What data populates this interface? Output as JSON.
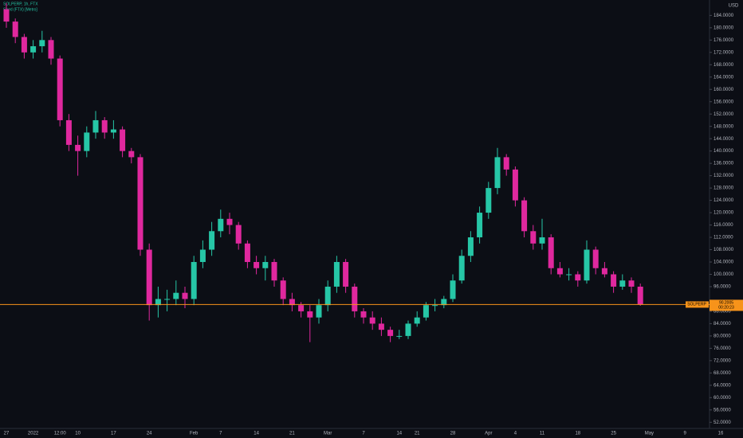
{
  "chart_data": {
    "type": "candlestick",
    "title": "SOLPERP, 1h, FTX",
    "subtitle": "Seed (FTX) [Metro]",
    "currency": "USD",
    "symbol": "SOLPERP",
    "last_price": 90.2005,
    "countdown": "00:20:23",
    "up_color": "#26c6a6",
    "down_color": "#e0289e",
    "price_line_color": "#f7931a",
    "categories": [
      "27",
      null,
      null,
      "2022",
      null,
      null,
      "12:00",
      null,
      "10",
      null,
      null,
      null,
      "17",
      null,
      null,
      null,
      "24",
      null,
      null,
      null,
      null,
      "Feb",
      null,
      null,
      "7",
      null,
      null,
      null,
      "14",
      null,
      null,
      null,
      "21",
      null,
      null,
      null,
      "Mar",
      null,
      null,
      null,
      "7",
      null,
      null,
      null,
      "14",
      null,
      "21",
      null,
      null,
      null,
      "28",
      null,
      null,
      null,
      "Apr",
      null,
      null,
      "4",
      null,
      null,
      "11",
      null,
      null,
      null,
      "18",
      null,
      null,
      null,
      "25",
      null,
      null,
      null,
      "May",
      null,
      null,
      null,
      "9",
      null,
      null,
      null,
      "16"
    ],
    "open": [
      186,
      182,
      177,
      172,
      174,
      176,
      170,
      150,
      142,
      140,
      146,
      150,
      146,
      147,
      140,
      138,
      108,
      90,
      92,
      92,
      94,
      92,
      104,
      108,
      114,
      118,
      116,
      110,
      104,
      102,
      104,
      98,
      92,
      90,
      88,
      86,
      90,
      96,
      104,
      96,
      88,
      86,
      84,
      82,
      80,
      80,
      84,
      86,
      90,
      90,
      92,
      98,
      106,
      112,
      120,
      128,
      138,
      134,
      124,
      114,
      110,
      112,
      102,
      100,
      100,
      98,
      108,
      102,
      100,
      96,
      98,
      96,
      null,
      null,
      null,
      null,
      null,
      null,
      null,
      null,
      null
    ],
    "high": [
      188,
      183,
      178,
      176,
      179,
      177,
      171,
      152,
      145,
      148,
      153,
      151,
      150,
      148,
      141,
      139,
      110,
      96,
      95,
      98,
      96,
      106,
      111,
      117,
      121,
      120,
      117,
      111,
      106,
      106,
      105,
      99,
      94,
      91,
      90,
      92,
      98,
      106,
      105,
      97,
      89,
      88,
      86,
      83,
      82,
      85,
      88,
      91,
      92,
      93,
      100,
      108,
      114,
      122,
      130,
      141,
      139,
      135,
      125,
      116,
      118,
      113,
      104,
      102,
      101,
      111,
      109,
      104,
      101,
      100,
      99,
      97,
      null,
      null,
      null,
      null,
      null,
      null,
      null,
      null,
      null
    ],
    "low": [
      180,
      175,
      170,
      170,
      172,
      168,
      148,
      140,
      132,
      138,
      144,
      144,
      144,
      138,
      136,
      106,
      85,
      86,
      88,
      90,
      89,
      90,
      102,
      106,
      112,
      113,
      108,
      102,
      100,
      98,
      96,
      90,
      88,
      86,
      78,
      84,
      88,
      94,
      94,
      86,
      84,
      82,
      80,
      78,
      79,
      79,
      83,
      85,
      88,
      89,
      91,
      97,
      104,
      110,
      118,
      126,
      132,
      122,
      112,
      108,
      108,
      100,
      99,
      98,
      96,
      97,
      100,
      99,
      94,
      95,
      94,
      89.8,
      null,
      null,
      null,
      null,
      null,
      null,
      null,
      null,
      null
    ],
    "close": [
      182,
      177,
      172,
      174,
      176,
      170,
      150,
      142,
      140,
      146,
      150,
      146,
      147,
      140,
      138,
      108,
      90,
      92,
      92,
      94,
      92,
      104,
      108,
      114,
      118,
      116,
      110,
      104,
      102,
      104,
      98,
      92,
      90,
      88,
      86,
      90,
      96,
      104,
      96,
      88,
      86,
      84,
      82,
      80,
      80,
      84,
      86,
      90,
      90,
      92,
      98,
      106,
      112,
      120,
      128,
      138,
      134,
      124,
      114,
      110,
      112,
      102,
      100,
      100,
      98,
      108,
      102,
      100,
      96,
      98,
      96,
      90.2005,
      null,
      null,
      null,
      null,
      null,
      null,
      null,
      null,
      null
    ],
    "ylim": [
      50,
      189
    ],
    "yticks": [
      {
        "value": 52,
        "label": "52.0000"
      },
      {
        "value": 56,
        "label": "56.0000"
      },
      {
        "value": 60,
        "label": "60.0000"
      },
      {
        "value": 64,
        "label": "64.0000"
      },
      {
        "value": 68,
        "label": "68.0000"
      },
      {
        "value": 72,
        "label": "72.0000"
      },
      {
        "value": 76,
        "label": "76.0000"
      },
      {
        "value": 80,
        "label": "80.0000"
      },
      {
        "value": 84,
        "label": "84.0000"
      },
      {
        "value": 88,
        "label": "88.0000"
      },
      {
        "value": 96,
        "label": "96.0000"
      },
      {
        "value": 100,
        "label": "100.0000"
      },
      {
        "value": 104,
        "label": "104.0000"
      },
      {
        "value": 108,
        "label": "108.0000"
      },
      {
        "value": 112,
        "label": "112.0000"
      },
      {
        "value": 116,
        "label": "116.0000"
      },
      {
        "value": 120,
        "label": "120.0000"
      },
      {
        "value": 124,
        "label": "124.0000"
      },
      {
        "value": 128,
        "label": "128.0000"
      },
      {
        "value": 132,
        "label": "132.0000"
      },
      {
        "value": 136,
        "label": "136.0000"
      },
      {
        "value": 140,
        "label": "140.0000"
      },
      {
        "value": 144,
        "label": "144.0000"
      },
      {
        "value": 148,
        "label": "148.0000"
      },
      {
        "value": 152,
        "label": "152.0000"
      },
      {
        "value": 156,
        "label": "156.0000"
      },
      {
        "value": 160,
        "label": "160.0000"
      },
      {
        "value": 164,
        "label": "164.0000"
      },
      {
        "value": 168,
        "label": "168.0000"
      },
      {
        "value": 172,
        "label": "172.0000"
      },
      {
        "value": 176,
        "label": "176.0000"
      },
      {
        "value": 180,
        "label": "180.0000"
      },
      {
        "value": 184,
        "label": "184.0000"
      }
    ]
  }
}
